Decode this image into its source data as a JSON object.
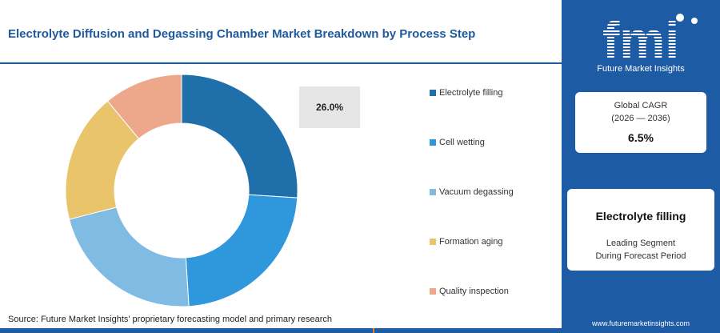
{
  "header": {
    "title": "Electrolyte Diffusion and Degassing Chamber Market Breakdown by Process Step"
  },
  "chart_data": {
    "type": "pie",
    "variant": "donut",
    "categories": [
      "Electrolyte filling",
      "Cell wetting",
      "Vacuum degassing",
      "Formation aging",
      "Quality inspection"
    ],
    "values": [
      26.0,
      23.0,
      22.0,
      18.0,
      11.0
    ],
    "unit": "%",
    "colors": [
      "#1f6fab",
      "#2f97dc",
      "#7fbbe3",
      "#e9c46a",
      "#eda88c"
    ],
    "start_angle_deg": 0,
    "direction": "clockwise",
    "callout": "26.0%",
    "legend_position": "right"
  },
  "source": {
    "text": "Source: Future Market Insights' proprietary forecasting model and primary research"
  },
  "bottom_bar_colors": [
    "#1d5ca4",
    "#e67e22",
    "#1d5ca4"
  ],
  "sidebar": {
    "logo_text": "fmi",
    "logo_subtitle": "Future Market Insights",
    "cagr": {
      "label": "Global CAGR",
      "period": "(2026 — 2036)",
      "value": "6.5%"
    },
    "leading_segment": {
      "name": "Electrolyte filling",
      "line1": "Leading Segment",
      "line2": "During Forecast Period"
    },
    "website": "www.futuremarketinsights.com"
  }
}
